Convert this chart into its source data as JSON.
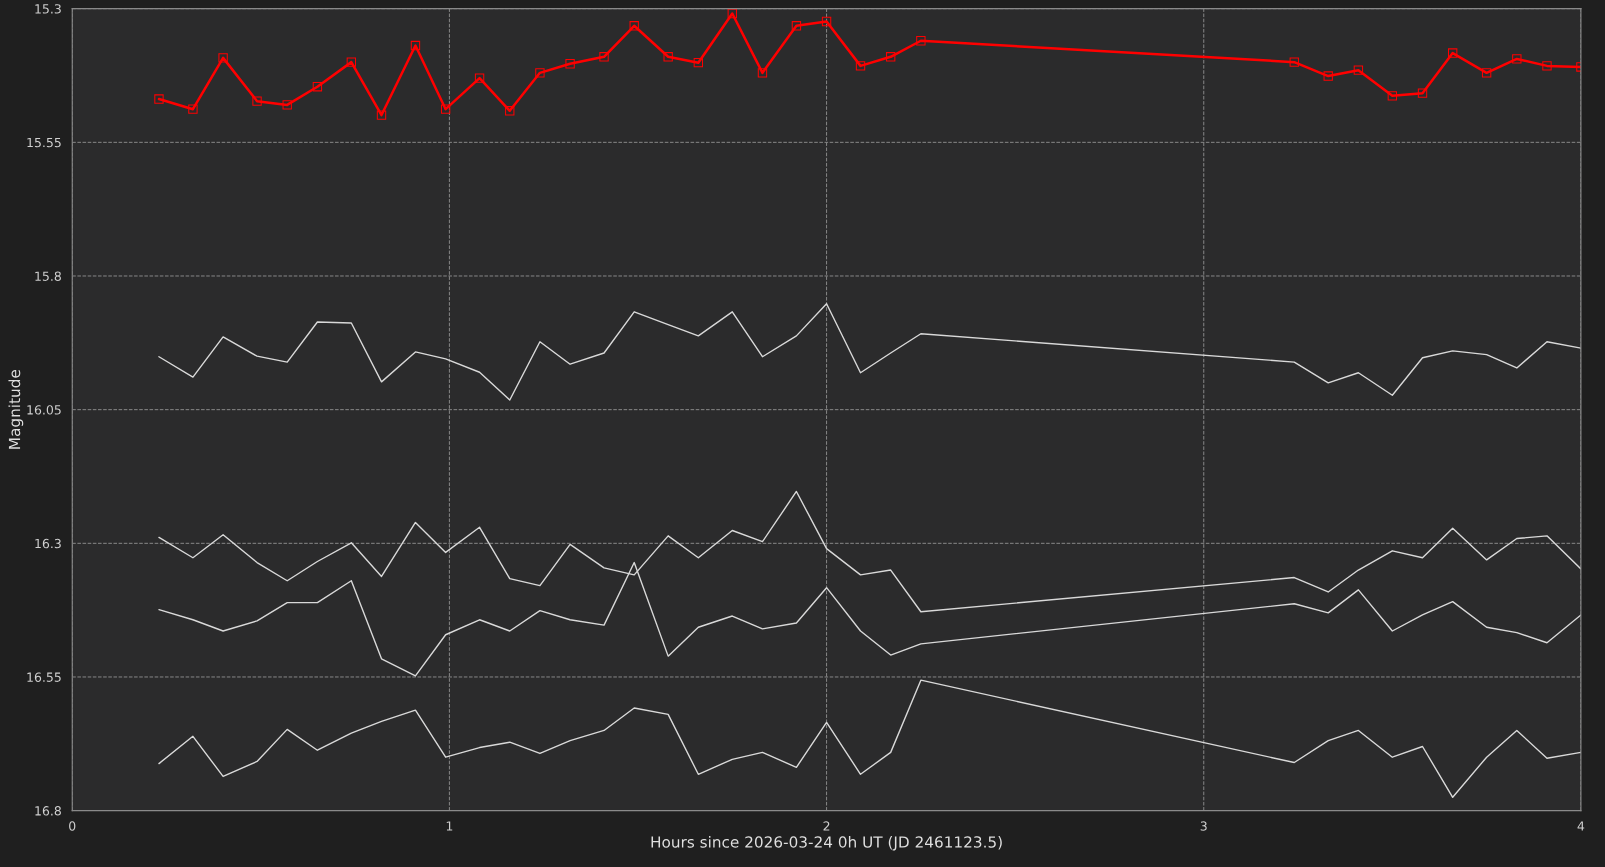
{
  "chart_data": {
    "type": "line",
    "xlabel": "Hours since 2026-03-24 0h UT (JD 2461123.5)",
    "ylabel": "Magnitude",
    "x": [
      0.23,
      0.32,
      0.4,
      0.49,
      0.57,
      0.65,
      0.74,
      0.82,
      0.91,
      0.99,
      1.08,
      1.16,
      1.24,
      1.32,
      1.41,
      1.49,
      1.58,
      1.66,
      1.75,
      1.83,
      1.92,
      2.0,
      2.09,
      2.17,
      2.25,
      3.24,
      3.33,
      3.41,
      3.5,
      3.58,
      3.66,
      3.75,
      3.83,
      3.91,
      4.0
    ],
    "series": [
      {
        "color": "#ff0000",
        "marker": "square",
        "values": [
          15.469,
          15.488,
          15.392,
          15.473,
          15.48,
          15.446,
          15.4,
          15.499,
          15.369,
          15.488,
          15.43,
          15.491,
          15.42,
          15.403,
          15.39,
          15.332,
          15.39,
          15.401,
          15.309,
          15.42,
          15.332,
          15.324,
          15.407,
          15.39,
          15.36,
          15.4,
          15.426,
          15.415,
          15.463,
          15.458,
          15.383,
          15.42,
          15.394,
          15.407,
          15.409
        ]
      },
      {
        "color": "#d9d9d9",
        "marker": "none",
        "values": [
          15.951,
          15.989,
          15.914,
          15.95,
          15.961,
          15.886,
          15.888,
          15.998,
          15.942,
          15.955,
          15.98,
          16.032,
          15.923,
          15.965,
          15.944,
          15.867,
          15.891,
          15.912,
          15.867,
          15.951,
          15.912,
          15.852,
          15.981,
          15.944,
          15.908,
          15.961,
          16.0,
          15.981,
          16.023,
          15.953,
          15.94,
          15.947,
          15.972,
          15.923,
          15.935
        ]
      },
      {
        "color": "#d9d9d9",
        "marker": "none",
        "values": [
          16.289,
          16.327,
          16.284,
          16.336,
          16.37,
          16.334,
          16.299,
          16.362,
          16.261,
          16.317,
          16.27,
          16.366,
          16.379,
          16.302,
          16.346,
          16.359,
          16.286,
          16.327,
          16.276,
          16.297,
          16.203,
          16.31,
          16.359,
          16.35,
          16.428,
          16.364,
          16.391,
          16.35,
          16.314,
          16.327,
          16.272,
          16.331,
          16.291,
          16.286,
          16.348
        ]
      },
      {
        "color": "#d9d9d9",
        "marker": "none",
        "values": [
          16.424,
          16.443,
          16.464,
          16.445,
          16.411,
          16.411,
          16.37,
          16.516,
          16.548,
          16.471,
          16.443,
          16.464,
          16.426,
          16.443,
          16.453,
          16.336,
          16.511,
          16.457,
          16.436,
          16.46,
          16.449,
          16.383,
          16.464,
          16.509,
          16.488,
          16.413,
          16.43,
          16.387,
          16.464,
          16.434,
          16.409,
          16.457,
          16.467,
          16.486,
          16.434
        ]
      },
      {
        "color": "#d9d9d9",
        "marker": "none",
        "values": [
          16.712,
          16.661,
          16.736,
          16.708,
          16.648,
          16.687,
          16.655,
          16.633,
          16.612,
          16.7,
          16.682,
          16.672,
          16.693,
          16.669,
          16.65,
          16.608,
          16.62,
          16.732,
          16.704,
          16.691,
          16.719,
          16.635,
          16.732,
          16.691,
          16.556,
          16.71,
          16.669,
          16.65,
          16.7,
          16.68,
          16.775,
          16.7,
          16.65,
          16.702,
          16.691
        ]
      }
    ],
    "xlim": [
      0,
      4
    ],
    "ylim": [
      16.8,
      15.3
    ],
    "xticks": [
      0,
      1,
      2,
      3,
      4
    ],
    "yticks": [
      15.3,
      15.55,
      15.8,
      16.05,
      16.3,
      16.55,
      16.8
    ],
    "grid": true,
    "line_style": "solid"
  }
}
